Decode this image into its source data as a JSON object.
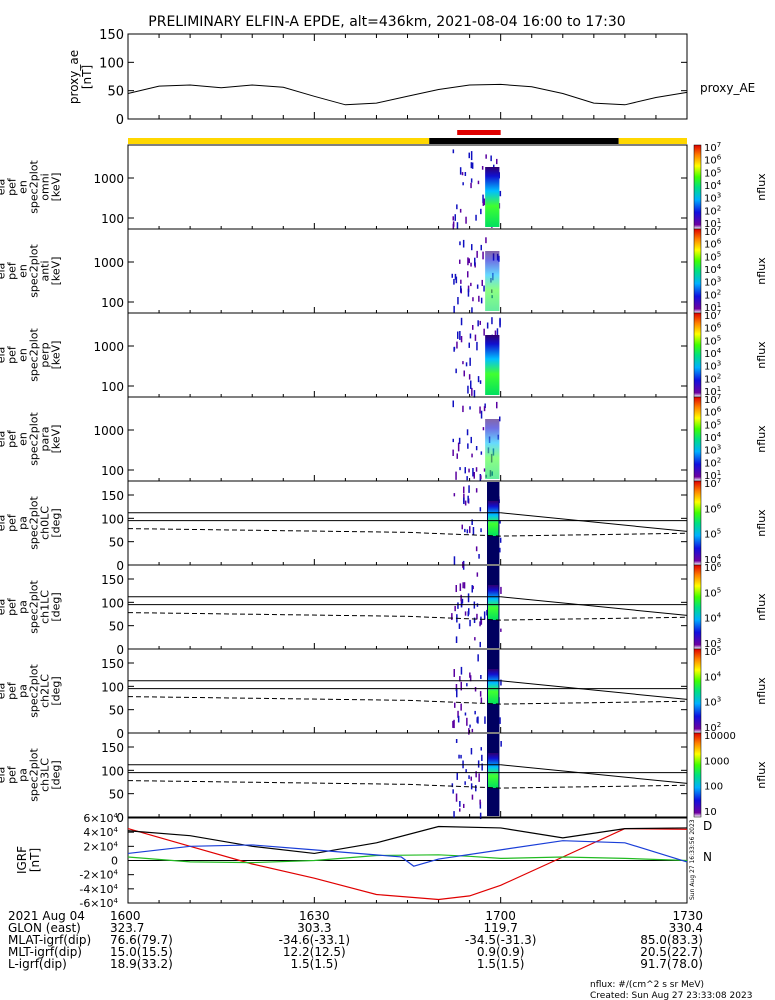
{
  "title": "PRELIMINARY ELFIN-A EPDE, alt=436km, 2021-08-04 16:00 to 17:30",
  "ae": {
    "ylabel": [
      "proxy_ae",
      "[nT]"
    ],
    "ticks": [
      "150",
      "100",
      "50",
      "0"
    ],
    "label": "proxy_AE"
  },
  "panels": [
    {
      "label": [
        "ela",
        "pef",
        "en",
        "spec2plot",
        "omni",
        "[keV]"
      ],
      "ticks": [
        "1000",
        "100"
      ],
      "cb": [
        "10",
        "10",
        "10",
        "10",
        "10",
        "10",
        "10"
      ],
      "cbexp": [
        "7",
        "6",
        "5",
        "4",
        "3",
        "2",
        "1"
      ],
      "cblabel": "nflux"
    },
    {
      "label": [
        "ela",
        "pef",
        "en",
        "spec2plot",
        "anti",
        "[keV]"
      ],
      "ticks": [
        "1000",
        "100"
      ],
      "cb": [
        "10",
        "10",
        "10",
        "10",
        "10",
        "10",
        "10"
      ],
      "cbexp": [
        "7",
        "6",
        "5",
        "4",
        "3",
        "2",
        "1"
      ],
      "cblabel": "nflux"
    },
    {
      "label": [
        "ela",
        "pef",
        "en",
        "spec2plot",
        "perp",
        "[keV]"
      ],
      "ticks": [
        "1000",
        "100"
      ],
      "cb": [
        "10",
        "10",
        "10",
        "10",
        "10",
        "10",
        "10"
      ],
      "cbexp": [
        "7",
        "6",
        "5",
        "4",
        "3",
        "2",
        "1"
      ],
      "cblabel": "nflux"
    },
    {
      "label": [
        "ela",
        "pef",
        "en",
        "spec2plot",
        "para",
        "[keV]"
      ],
      "ticks": [
        "1000",
        "100"
      ],
      "cb": [
        "10",
        "10",
        "10",
        "10",
        "10",
        "10",
        "10"
      ],
      "cbexp": [
        "7",
        "6",
        "5",
        "4",
        "3",
        "2",
        "1"
      ],
      "cblabel": "nflux"
    },
    {
      "label": [
        "ela",
        "pef",
        "pa",
        "spec2plot",
        "ch0LC",
        "[deg]"
      ],
      "ticks": [
        "150",
        "100",
        "50",
        "0"
      ],
      "cb": [
        "10",
        "10",
        "10",
        "10"
      ],
      "cbexp": [
        "7",
        "6",
        "5",
        "4"
      ],
      "cblabel": "nflux"
    },
    {
      "label": [
        "ela",
        "pef",
        "pa",
        "spec2plot",
        "ch1LC",
        "[deg]"
      ],
      "ticks": [
        "150",
        "100",
        "50",
        "0"
      ],
      "cb": [
        "10",
        "10",
        "10",
        "10"
      ],
      "cbexp": [
        "6",
        "5",
        "4",
        "3"
      ],
      "cblabel": "nflux"
    },
    {
      "label": [
        "ela",
        "pef",
        "pa",
        "spec2plot",
        "ch2LC",
        "[deg]"
      ],
      "ticks": [
        "150",
        "100",
        "50",
        "0"
      ],
      "cb": [
        "10",
        "10",
        "10",
        "10"
      ],
      "cbexp": [
        "5",
        "4",
        "3",
        "2"
      ],
      "cblabel": "nflux"
    },
    {
      "label": [
        "ela",
        "pef",
        "pa",
        "spec2plot",
        "ch3LC",
        "[deg]"
      ],
      "ticks": [
        "150",
        "100",
        "50",
        "0"
      ],
      "cb": [
        "10000",
        "1000",
        "100",
        "10"
      ],
      "cbexp": [
        "",
        "",
        "",
        ""
      ],
      "cblabel": "nflux"
    }
  ],
  "igrf": {
    "ylabel": [
      "IGRF",
      "[nT]"
    ],
    "ticks": [
      "6",
      "4",
      "2",
      "0",
      "-2",
      "-4",
      "-6"
    ],
    "tickexp": "4",
    "legend": [
      "D",
      "N"
    ],
    "side": "Sun Aug 27 16:33:56 2023"
  },
  "xaxis": {
    "rows": [
      {
        "name": "2021 Aug 04",
        "vals": [
          "1600",
          "1630",
          "1700",
          "1730"
        ]
      },
      {
        "name": "GLON (east)",
        "vals": [
          "323.7",
          "303.3",
          "119.7",
          "330.4"
        ]
      },
      {
        "name": "MLAT-igrf(dip)",
        "vals": [
          "76.6(79.7)",
          "-34.6(-33.1)",
          "-34.5(-31.3)",
          "85.0(83.3)"
        ]
      },
      {
        "name": "MLT-igrf(dip)",
        "vals": [
          "15.0(15.5)",
          "12.2(12.5)",
          "0.9(0.9)",
          "20.5(22.7)"
        ]
      },
      {
        "name": "L-igrf(dip)",
        "vals": [
          "18.9(33.2)",
          "1.5(1.5)",
          "1.5(1.5)",
          "91.7(78.0)"
        ]
      }
    ]
  },
  "footer": {
    "units": "nflux: #/(cm^2 s sr MeV)",
    "created": "Created: Sun Aug 27 23:33:08 2023"
  },
  "colors": {
    "yellow": "#ffd700",
    "red": "#e00000",
    "black": "#000000",
    "blue": "#1a3ed8",
    "green": "#22bb22"
  },
  "chart_data": {
    "type": "line",
    "title": "PRELIMINARY ELFIN-A EPDE, alt=436km, 2021-08-04 16:00 to 17:30",
    "x_time_ticks": [
      "1600",
      "1630",
      "1700",
      "1730"
    ],
    "proxy_ae": {
      "ylim": [
        0,
        150
      ],
      "x_minutes_after_1600": [
        0,
        5,
        10,
        15,
        20,
        25,
        30,
        35,
        40,
        45,
        50,
        55,
        60,
        65,
        70,
        75,
        80,
        85,
        90
      ],
      "values": [
        45,
        58,
        60,
        55,
        60,
        56,
        40,
        25,
        28,
        40,
        52,
        60,
        61,
        57,
        45,
        28,
        25,
        38,
        47
      ]
    },
    "igrf": {
      "ylim": [
        -60000,
        60000
      ],
      "x_minutes_after_1600": [
        0,
        10,
        20,
        30,
        40,
        50,
        55,
        60,
        70,
        80,
        90
      ],
      "series": [
        {
          "name": "D",
          "values": [
            45000,
            20000,
            -5000,
            -25000,
            -48000,
            -55000,
            -50000,
            -35000,
            5000,
            45000,
            44000
          ]
        },
        {
          "name": "N",
          "values": [
            5000,
            -2000,
            -3000,
            0,
            7000,
            8000,
            6000,
            3000,
            5000,
            3000,
            0
          ]
        }
      ]
    }
  }
}
